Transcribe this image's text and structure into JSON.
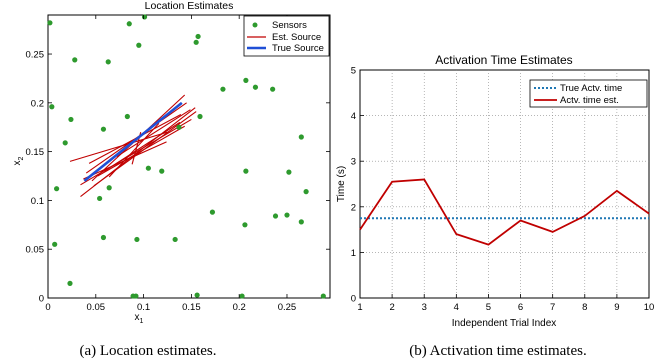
{
  "chart_data": [
    {
      "type": "scatter",
      "title": "Location Estimates",
      "xlabel": "x1",
      "ylabel": "x2",
      "xlim": [
        0,
        0.295
      ],
      "ylim": [
        0,
        0.29
      ],
      "xticks": [
        0,
        0.05,
        0.1,
        0.15,
        0.2,
        0.25
      ],
      "yticks": [
        0,
        0.05,
        0.1,
        0.15,
        0.2,
        0.25
      ],
      "xtick_labels": [
        "0",
        "0.05",
        "0.1",
        "0.15",
        "0.2",
        "0.25"
      ],
      "ytick_labels": [
        "0",
        "0.05",
        "0.1",
        "0.15",
        "0.2",
        "0.25"
      ],
      "legend_position": "top-right",
      "legend": [
        "Sensors",
        "Est. Source",
        "True Source"
      ],
      "series": [
        {
          "name": "Sensors",
          "color": "#2e9a2e",
          "points": [
            [
              0.002,
              0.282
            ],
            [
              0.085,
              0.281
            ],
            [
              0.101,
              0.288
            ],
            [
              0.157,
              0.268
            ],
            [
              0.155,
              0.262
            ],
            [
              0.028,
              0.244
            ],
            [
              0.063,
              0.242
            ],
            [
              0.095,
              0.259
            ],
            [
              0.207,
              0.223
            ],
            [
              0.217,
              0.216
            ],
            [
              0.183,
              0.214
            ],
            [
              0.235,
              0.214
            ],
            [
              0.004,
              0.196
            ],
            [
              0.024,
              0.183
            ],
            [
              0.083,
              0.186
            ],
            [
              0.159,
              0.186
            ],
            [
              0.058,
              0.173
            ],
            [
              0.018,
              0.159
            ],
            [
              0.137,
              0.175
            ],
            [
              0.265,
              0.165
            ],
            [
              0.105,
              0.133
            ],
            [
              0.119,
              0.13
            ],
            [
              0.207,
              0.13
            ],
            [
              0.252,
              0.129
            ],
            [
              0.009,
              0.112
            ],
            [
              0.054,
              0.102
            ],
            [
              0.064,
              0.113
            ],
            [
              0.27,
              0.109
            ],
            [
              0.172,
              0.088
            ],
            [
              0.238,
              0.084
            ],
            [
              0.206,
              0.075
            ],
            [
              0.265,
              0.078
            ],
            [
              0.25,
              0.085
            ],
            [
              0.007,
              0.055
            ],
            [
              0.058,
              0.062
            ],
            [
              0.093,
              0.06
            ],
            [
              0.133,
              0.06
            ],
            [
              0.023,
              0.015
            ],
            [
              0.089,
              0.002
            ],
            [
              0.092,
              0.002
            ],
            [
              0.156,
              0.003
            ],
            [
              0.203,
              0.002
            ],
            [
              0.288,
              0.002
            ]
          ]
        },
        {
          "name": "Est. Source",
          "color": "#c00000",
          "segments": [
            [
              [
                0.04,
                0.128
              ],
              [
                0.145,
                0.2
              ]
            ],
            [
              [
                0.046,
                0.12
              ],
              [
                0.143,
                0.208
              ]
            ],
            [
              [
                0.034,
                0.116
              ],
              [
                0.15,
                0.183
              ]
            ],
            [
              [
                0.043,
                0.138
              ],
              [
                0.139,
                0.188
              ]
            ],
            [
              [
                0.052,
                0.125
              ],
              [
                0.143,
                0.176
              ]
            ],
            [
              [
                0.034,
                0.104
              ],
              [
                0.154,
                0.195
              ]
            ],
            [
              [
                0.037,
                0.122
              ],
              [
                0.124,
                0.16
              ]
            ],
            [
              [
                0.059,
                0.13
              ],
              [
                0.138,
                0.18
              ]
            ],
            [
              [
                0.072,
                0.145
              ],
              [
                0.149,
                0.193
              ]
            ],
            [
              [
                0.023,
                0.14
              ],
              [
                0.125,
                0.17
              ]
            ],
            [
              [
                0.064,
                0.124
              ],
              [
                0.116,
                0.179
              ]
            ],
            [
              [
                0.048,
                0.115
              ],
              [
                0.155,
                0.191
              ]
            ],
            [
              [
                0.088,
                0.137
              ],
              [
                0.097,
                0.17
              ]
            ]
          ]
        },
        {
          "name": "True Source",
          "color": "#1f4fd6",
          "segments": [
            [
              [
                0.038,
                0.12
              ],
              [
                0.14,
                0.2
              ]
            ]
          ]
        }
      ]
    },
    {
      "type": "line",
      "title": "Activation Time Estimates",
      "xlabel": "Independent Trial Index",
      "ylabel": "Time (s)",
      "xlim": [
        1,
        10
      ],
      "ylim": [
        0,
        5
      ],
      "xticks": [
        1,
        2,
        3,
        4,
        5,
        6,
        7,
        8,
        9,
        10
      ],
      "yticks": [
        0,
        1,
        2,
        3,
        4,
        5
      ],
      "grid": true,
      "legend_position": "top-right",
      "legend": [
        "True Actv. time",
        "Actv. time est."
      ],
      "x": [
        1,
        2,
        3,
        4,
        5,
        6,
        7,
        8,
        9,
        10
      ],
      "series": [
        {
          "name": "True Actv. time",
          "color": "#1f77b4",
          "style": "dotted",
          "values": [
            1.75,
            1.75,
            1.75,
            1.75,
            1.75,
            1.75,
            1.75,
            1.75,
            1.75,
            1.75
          ]
        },
        {
          "name": "Actv. time est.",
          "color": "#c00000",
          "style": "solid",
          "values": [
            1.5,
            2.55,
            2.6,
            1.4,
            1.17,
            1.7,
            1.45,
            1.8,
            2.35,
            1.85
          ]
        }
      ]
    }
  ],
  "captions": {
    "left": "(a) Location estimates.",
    "right": "(b) Activation time estimates."
  },
  "labels": {
    "left_xlabel": "x",
    "left_xlabel_sub": "1",
    "left_ylabel": "x",
    "left_ylabel_sub": "2"
  }
}
